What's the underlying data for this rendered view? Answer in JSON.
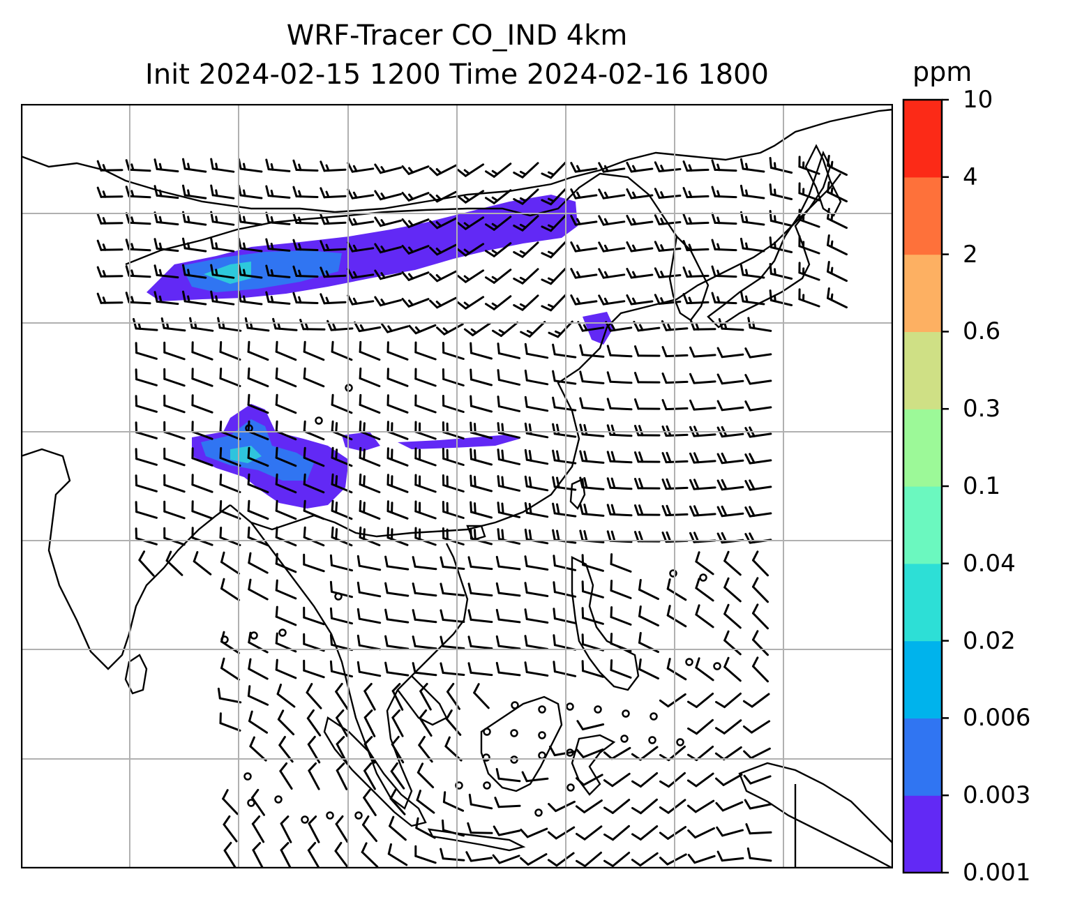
{
  "title": {
    "line1": "WRF-Tracer CO_IND 4km",
    "line2": "Init 2024-02-15 1200 Time 2024-02-16 1800"
  },
  "colorbar": {
    "unit": "ppm",
    "levels": [
      "0.001",
      "0.003",
      "0.006",
      "0.02",
      "0.04",
      "0.1",
      "0.3",
      "0.6",
      "2",
      "4",
      "10"
    ],
    "colors": [
      "#6229f5",
      "#3075f2",
      "#00b3ec",
      "#2ddfd6",
      "#6bf8bf",
      "#9cf998",
      "#cfe085",
      "#fdb062",
      "#fe713a",
      "#fc2a17"
    ]
  },
  "map": {
    "coastline_color": "#000000",
    "gridline_color": "#b0b0b0",
    "barb_color": "#000000",
    "plume_colors": [
      "#6229f5",
      "#3075f2",
      "#2ddfd6"
    ]
  }
}
